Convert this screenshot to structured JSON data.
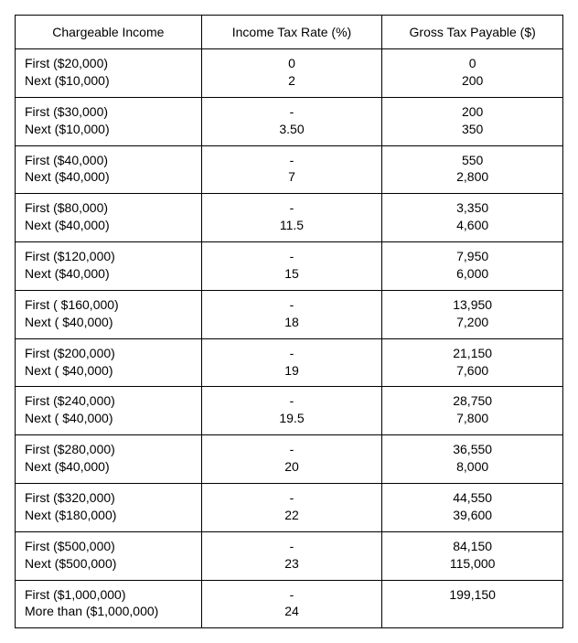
{
  "table": {
    "headers": {
      "chargeable": "Chargeable Income",
      "rate": "Income Tax Rate (%)",
      "tax": "Gross Tax Payable ($)"
    },
    "rows": [
      {
        "income_first": "First ($20,000)",
        "income_next": "Next ($10,000)",
        "rate_first": "0",
        "rate_next": "2",
        "tax_first": "0",
        "tax_next": "200"
      },
      {
        "income_first": "First ($30,000)",
        "income_next": "Next ($10,000)",
        "rate_first": "-",
        "rate_next": "3.50",
        "tax_first": "200",
        "tax_next": "350"
      },
      {
        "income_first": "First ($40,000)",
        "income_next": "Next ($40,000)",
        "rate_first": "-",
        "rate_next": "7",
        "tax_first": "550",
        "tax_next": "2,800"
      },
      {
        "income_first": "First ($80,000)",
        "income_next": "Next ($40,000)",
        "rate_first": "-",
        "rate_next": "11.5",
        "tax_first": "3,350",
        "tax_next": "4,600"
      },
      {
        "income_first": "First ($120,000)",
        "income_next": "Next ($40,000)",
        "rate_first": "-",
        "rate_next": "15",
        "tax_first": "7,950",
        "tax_next": "6,000"
      },
      {
        "income_first": "First ( $160,000)",
        "income_next": "Next ( $40,000)",
        "rate_first": "-",
        "rate_next": "18",
        "tax_first": "13,950",
        "tax_next": "7,200"
      },
      {
        "income_first": "First ($200,000)",
        "income_next": "Next ( $40,000)",
        "rate_first": "-",
        "rate_next": "19",
        "tax_first": "21,150",
        "tax_next": "7,600"
      },
      {
        "income_first": "First ($240,000)",
        "income_next": "Next ( $40,000)",
        "rate_first": "-",
        "rate_next": "19.5",
        "tax_first": "28,750",
        "tax_next": "7,800"
      },
      {
        "income_first": "First ($280,000)",
        "income_next": "Next ($40,000)",
        "rate_first": "-",
        "rate_next": "20",
        "tax_first": "36,550",
        "tax_next": "8,000"
      },
      {
        "income_first": "First ($320,000)",
        "income_next": "Next ($180,000)",
        "rate_first": "-",
        "rate_next": "22",
        "tax_first": "44,550",
        "tax_next": "39,600"
      },
      {
        "income_first": "First ($500,000)",
        "income_next": "Next ($500,000)",
        "rate_first": "-",
        "rate_next": "23",
        "tax_first": "84,150",
        "tax_next": "115,000"
      },
      {
        "income_first": "First ($1,000,000)",
        "income_next": "More than  ($1,000,000)",
        "rate_first": "-",
        "rate_next": "24",
        "tax_first": "199,150",
        "tax_next": ""
      }
    ],
    "style": {
      "border_color": "#000000",
      "background_color": "#ffffff",
      "font_family": "Arial",
      "font_size_pt": 10.5,
      "header_align": "center",
      "col_income_align": "left",
      "col_rate_align": "center",
      "col_tax_align": "center"
    }
  }
}
